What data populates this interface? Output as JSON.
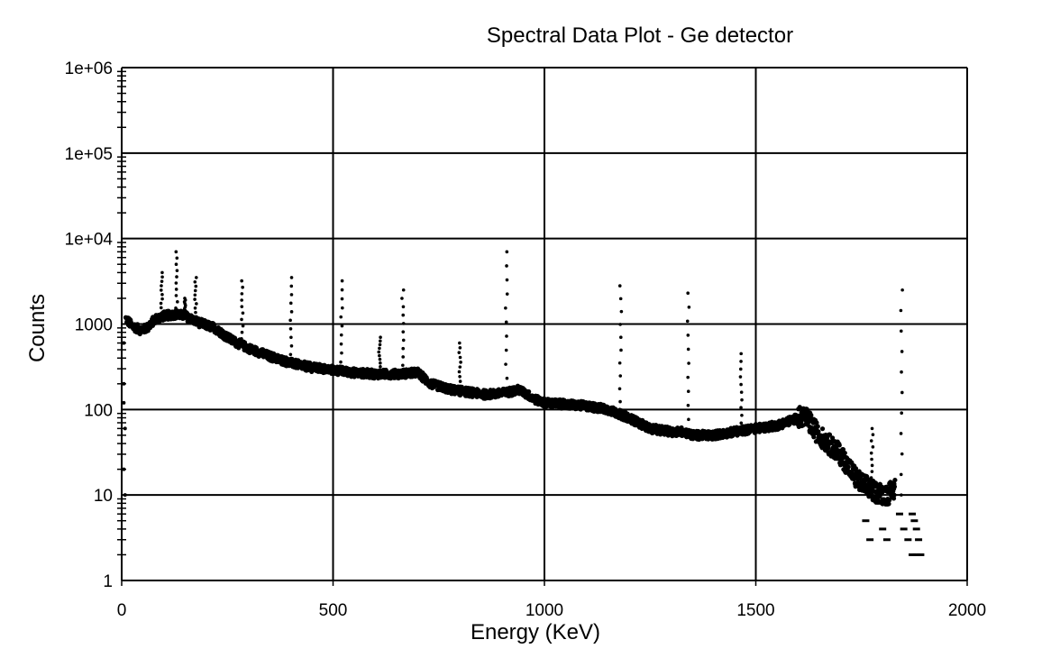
{
  "chart_data": {
    "type": "scatter",
    "title": "Spectral Data Plot - Ge detector",
    "xlabel": "Energy (KeV)",
    "ylabel": "Counts",
    "xlim": [
      0,
      2000
    ],
    "ylim": [
      1,
      1000000
    ],
    "yscale": "log",
    "grid": true,
    "x_ticks": [
      "0",
      "500",
      "1000",
      "1500",
      "2000"
    ],
    "x_tick_values": [
      0,
      500,
      1000,
      1500,
      2000
    ],
    "y_ticks": [
      "1",
      "10",
      "100",
      "1000",
      "1e+04",
      "1e+05",
      "1e+06"
    ],
    "y_tick_values": [
      1,
      10,
      100,
      1000,
      10000,
      100000,
      1000000
    ],
    "color": "#000000",
    "continuum": [
      [
        10,
        1150
      ],
      [
        25,
        950
      ],
      [
        45,
        850
      ],
      [
        60,
        900
      ],
      [
        80,
        1150
      ],
      [
        100,
        1250
      ],
      [
        130,
        1300
      ],
      [
        150,
        1250
      ],
      [
        180,
        1050
      ],
      [
        220,
        900
      ],
      [
        260,
        650
      ],
      [
        300,
        520
      ],
      [
        350,
        420
      ],
      [
        400,
        350
      ],
      [
        450,
        310
      ],
      [
        500,
        290
      ],
      [
        550,
        270
      ],
      [
        600,
        260
      ],
      [
        650,
        260
      ],
      [
        700,
        270
      ],
      [
        730,
        200
      ],
      [
        780,
        170
      ],
      [
        820,
        160
      ],
      [
        860,
        150
      ],
      [
        900,
        155
      ],
      [
        940,
        170
      ],
      [
        980,
        130
      ],
      [
        1000,
        120
      ],
      [
        1050,
        115
      ],
      [
        1100,
        110
      ],
      [
        1150,
        100
      ],
      [
        1200,
        80
      ],
      [
        1250,
        60
      ],
      [
        1300,
        55
      ],
      [
        1330,
        55
      ],
      [
        1350,
        50
      ],
      [
        1400,
        50
      ],
      [
        1450,
        55
      ],
      [
        1500,
        60
      ],
      [
        1550,
        65
      ],
      [
        1600,
        80
      ],
      [
        1615,
        85
      ],
      [
        1650,
        50
      ],
      [
        1700,
        30
      ],
      [
        1740,
        15
      ],
      [
        1780,
        11
      ],
      [
        1810,
        10
      ],
      [
        1830,
        12
      ]
    ],
    "peaks": [
      {
        "energy": 95,
        "counts": 4000
      },
      {
        "energy": 130,
        "counts": 7000
      },
      {
        "energy": 150,
        "counts": 2000
      },
      {
        "energy": 175,
        "counts": 3500
      },
      {
        "energy": 285,
        "counts": 3200
      },
      {
        "energy": 400,
        "counts": 3500
      },
      {
        "energy": 520,
        "counts": 3200
      },
      {
        "energy": 610,
        "counts": 700
      },
      {
        "energy": 665,
        "counts": 2500
      },
      {
        "energy": 800,
        "counts": 600
      },
      {
        "energy": 910,
        "counts": 7000
      },
      {
        "energy": 1180,
        "counts": 2800
      },
      {
        "energy": 1340,
        "counts": 2300
      },
      {
        "energy": 1465,
        "counts": 450
      },
      {
        "energy": 1775,
        "counts": 60
      },
      {
        "energy": 1845,
        "counts": 2500
      }
    ],
    "tail_points": [
      [
        1760,
        5
      ],
      [
        1770,
        3
      ],
      [
        1790,
        8
      ],
      [
        1800,
        4
      ],
      [
        1810,
        3
      ],
      [
        1840,
        6
      ],
      [
        1850,
        4
      ],
      [
        1860,
        3
      ],
      [
        1870,
        6
      ],
      [
        1875,
        5
      ],
      [
        1880,
        4
      ],
      [
        1885,
        3
      ],
      [
        1890,
        2
      ],
      [
        1880,
        2
      ],
      [
        1870,
        2
      ]
    ]
  }
}
